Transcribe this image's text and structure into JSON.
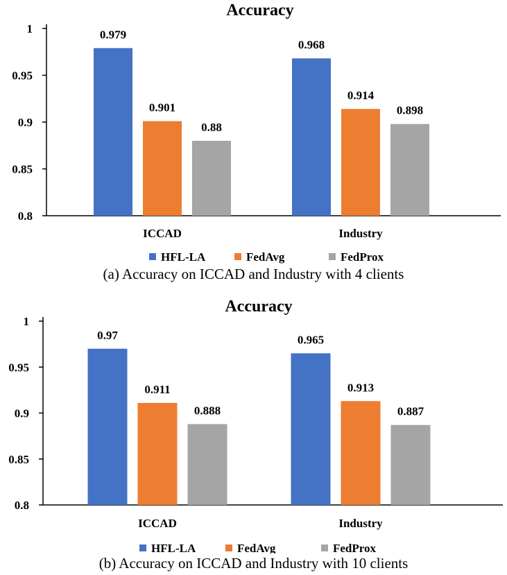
{
  "chart_data": [
    {
      "type": "bar",
      "title": "Accuracy",
      "categories": [
        "ICCAD",
        "Industry"
      ],
      "series": [
        {
          "name": "HFL-LA",
          "values": [
            0.979,
            0.968
          ],
          "labels": [
            "0.979",
            "0.968"
          ],
          "color": "#4472C4"
        },
        {
          "name": "FedAvg",
          "values": [
            0.901,
            0.914
          ],
          "labels": [
            "0.901",
            "0.914"
          ],
          "color": "#ED7D31"
        },
        {
          "name": "FedProx",
          "values": [
            0.88,
            0.898
          ],
          "labels": [
            "0.88",
            "0.898"
          ],
          "color": "#A5A5A5"
        }
      ],
      "ylim": [
        0.8,
        1
      ],
      "yticks": [
        0.8,
        0.85,
        0.9,
        0.95,
        1
      ],
      "ytick_labels": [
        "0.8",
        "0.85",
        "0.9",
        "0.95",
        "1"
      ],
      "xlabel": "",
      "ylabel": "",
      "grid": false,
      "legend": "bottom",
      "caption": "(a) Accuracy on ICCAD and Industry with 4 clients"
    },
    {
      "type": "bar",
      "title": "Accuracy",
      "categories": [
        "ICCAD",
        "Industry"
      ],
      "series": [
        {
          "name": "HFL-LA",
          "values": [
            0.97,
            0.965
          ],
          "labels": [
            "0.97",
            "0.965"
          ],
          "color": "#4472C4"
        },
        {
          "name": "FedAvg",
          "values": [
            0.911,
            0.913
          ],
          "labels": [
            "0.911",
            "0.913"
          ],
          "color": "#ED7D31"
        },
        {
          "name": "FedProx",
          "values": [
            0.888,
            0.887
          ],
          "labels": [
            "0.888",
            "0.887"
          ],
          "color": "#A5A5A5"
        }
      ],
      "ylim": [
        0.8,
        1
      ],
      "yticks": [
        0.8,
        0.85,
        0.9,
        0.95,
        1
      ],
      "ytick_labels": [
        "0.8",
        "0.85",
        "0.9",
        "0.95",
        "1"
      ],
      "xlabel": "",
      "ylabel": "",
      "grid": false,
      "legend": "bottom",
      "caption": "(b) Accuracy on ICCAD and Industry with 10 clients"
    }
  ]
}
